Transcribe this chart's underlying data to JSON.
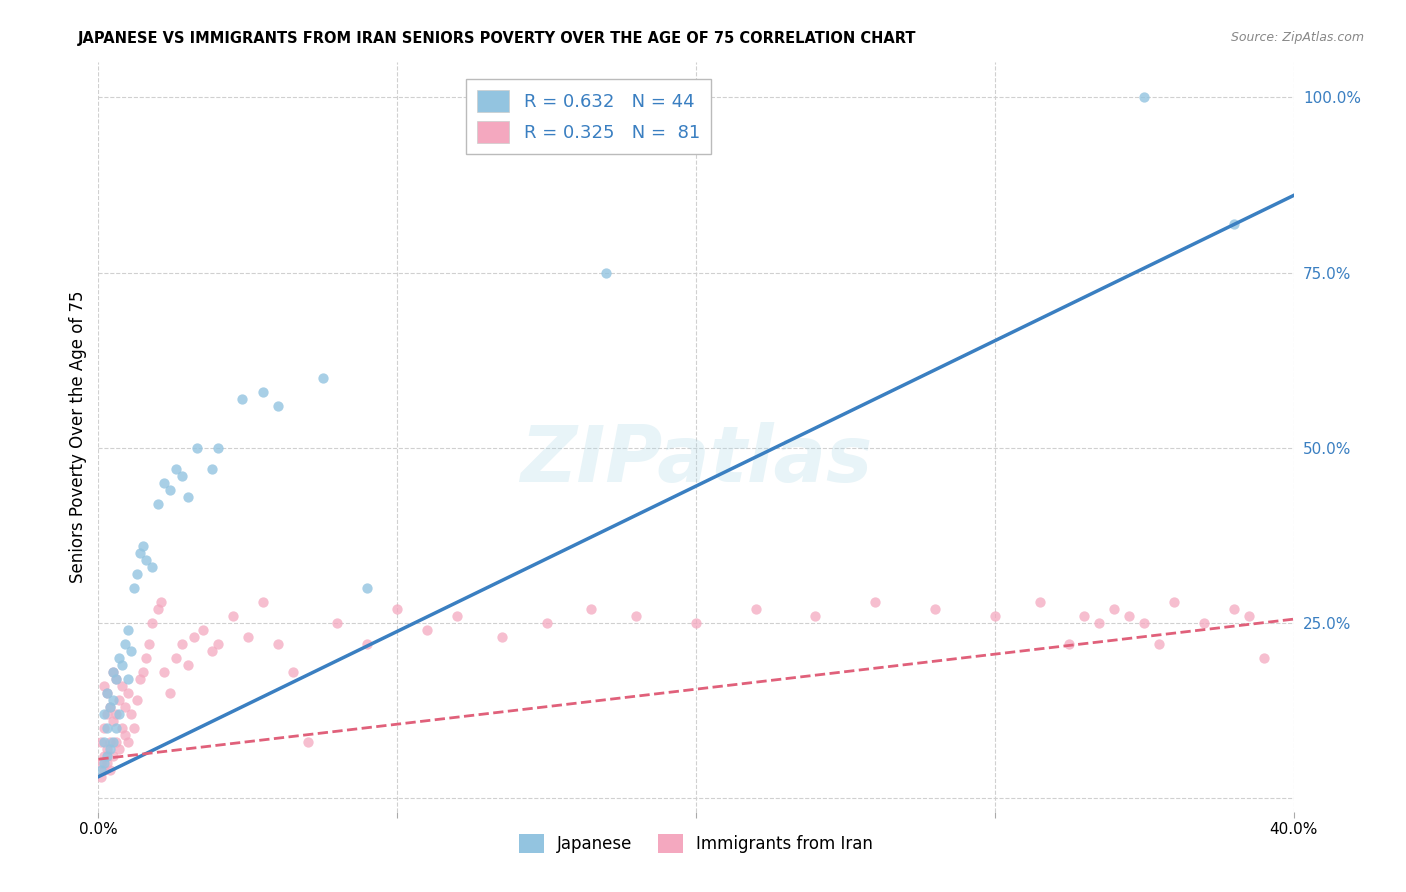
{
  "title": "JAPANESE VS IMMIGRANTS FROM IRAN SENIORS POVERTY OVER THE AGE OF 75 CORRELATION CHART",
  "source": "Source: ZipAtlas.com",
  "ylabel": "Seniors Poverty Over the Age of 75",
  "xlim": [
    0.0,
    0.4
  ],
  "ylim": [
    -0.02,
    1.05
  ],
  "x_ticks": [
    0.0,
    0.1,
    0.2,
    0.3,
    0.4
  ],
  "x_tick_labels": [
    "0.0%",
    "",
    "",
    "",
    "40.0%"
  ],
  "y_ticks_right": [
    0.0,
    0.25,
    0.5,
    0.75,
    1.0
  ],
  "y_tick_labels_right": [
    "",
    "25.0%",
    "50.0%",
    "75.0%",
    "100.0%"
  ],
  "background_color": "#ffffff",
  "grid_color": "#d0d0d0",
  "watermark": "ZIPatlas",
  "legend_label1": "Japanese",
  "legend_label2": "Immigrants from Iran",
  "R1": 0.632,
  "N1": 44,
  "R2": 0.325,
  "N2": 81,
  "color_blue": "#93c4e0",
  "color_pink": "#f4a8bf",
  "line_color_blue": "#3a7fc1",
  "line_color_pink": "#e0607a",
  "jp_line_x0": 0.0,
  "jp_line_y0": 0.03,
  "jp_line_x1": 0.4,
  "jp_line_y1": 0.86,
  "ir_line_x0": 0.0,
  "ir_line_y0": 0.055,
  "ir_line_x1": 0.4,
  "ir_line_y1": 0.255,
  "japanese_x": [
    0.001,
    0.002,
    0.002,
    0.002,
    0.003,
    0.003,
    0.003,
    0.004,
    0.004,
    0.005,
    0.005,
    0.005,
    0.006,
    0.006,
    0.007,
    0.007,
    0.008,
    0.009,
    0.01,
    0.01,
    0.011,
    0.012,
    0.013,
    0.014,
    0.015,
    0.016,
    0.018,
    0.02,
    0.022,
    0.024,
    0.026,
    0.028,
    0.03,
    0.033,
    0.038,
    0.04,
    0.048,
    0.055,
    0.06,
    0.075,
    0.09,
    0.17,
    0.35,
    0.38
  ],
  "japanese_y": [
    0.04,
    0.05,
    0.08,
    0.12,
    0.06,
    0.1,
    0.15,
    0.07,
    0.13,
    0.08,
    0.14,
    0.18,
    0.1,
    0.17,
    0.12,
    0.2,
    0.19,
    0.22,
    0.17,
    0.24,
    0.21,
    0.3,
    0.32,
    0.35,
    0.36,
    0.34,
    0.33,
    0.42,
    0.45,
    0.44,
    0.47,
    0.46,
    0.43,
    0.5,
    0.47,
    0.5,
    0.57,
    0.58,
    0.56,
    0.6,
    0.3,
    0.75,
    1.0,
    0.82
  ],
  "iran_x": [
    0.001,
    0.001,
    0.001,
    0.002,
    0.002,
    0.002,
    0.002,
    0.003,
    0.003,
    0.003,
    0.003,
    0.004,
    0.004,
    0.004,
    0.005,
    0.005,
    0.005,
    0.006,
    0.006,
    0.006,
    0.007,
    0.007,
    0.008,
    0.008,
    0.009,
    0.009,
    0.01,
    0.01,
    0.011,
    0.012,
    0.013,
    0.014,
    0.015,
    0.016,
    0.017,
    0.018,
    0.02,
    0.021,
    0.022,
    0.024,
    0.026,
    0.028,
    0.03,
    0.032,
    0.035,
    0.038,
    0.04,
    0.045,
    0.05,
    0.055,
    0.06,
    0.065,
    0.07,
    0.08,
    0.09,
    0.1,
    0.11,
    0.12,
    0.135,
    0.15,
    0.165,
    0.18,
    0.2,
    0.22,
    0.24,
    0.26,
    0.28,
    0.3,
    0.315,
    0.325,
    0.33,
    0.335,
    0.34,
    0.345,
    0.35,
    0.355,
    0.36,
    0.37,
    0.38,
    0.385,
    0.39
  ],
  "iran_y": [
    0.03,
    0.05,
    0.08,
    0.04,
    0.06,
    0.1,
    0.16,
    0.05,
    0.07,
    0.12,
    0.15,
    0.04,
    0.08,
    0.13,
    0.06,
    0.11,
    0.18,
    0.08,
    0.12,
    0.17,
    0.07,
    0.14,
    0.1,
    0.16,
    0.09,
    0.13,
    0.08,
    0.15,
    0.12,
    0.1,
    0.14,
    0.17,
    0.18,
    0.2,
    0.22,
    0.25,
    0.27,
    0.28,
    0.18,
    0.15,
    0.2,
    0.22,
    0.19,
    0.23,
    0.24,
    0.21,
    0.22,
    0.26,
    0.23,
    0.28,
    0.22,
    0.18,
    0.08,
    0.25,
    0.22,
    0.27,
    0.24,
    0.26,
    0.23,
    0.25,
    0.27,
    0.26,
    0.25,
    0.27,
    0.26,
    0.28,
    0.27,
    0.26,
    0.28,
    0.22,
    0.26,
    0.25,
    0.27,
    0.26,
    0.25,
    0.22,
    0.28,
    0.25,
    0.27,
    0.26,
    0.2
  ]
}
